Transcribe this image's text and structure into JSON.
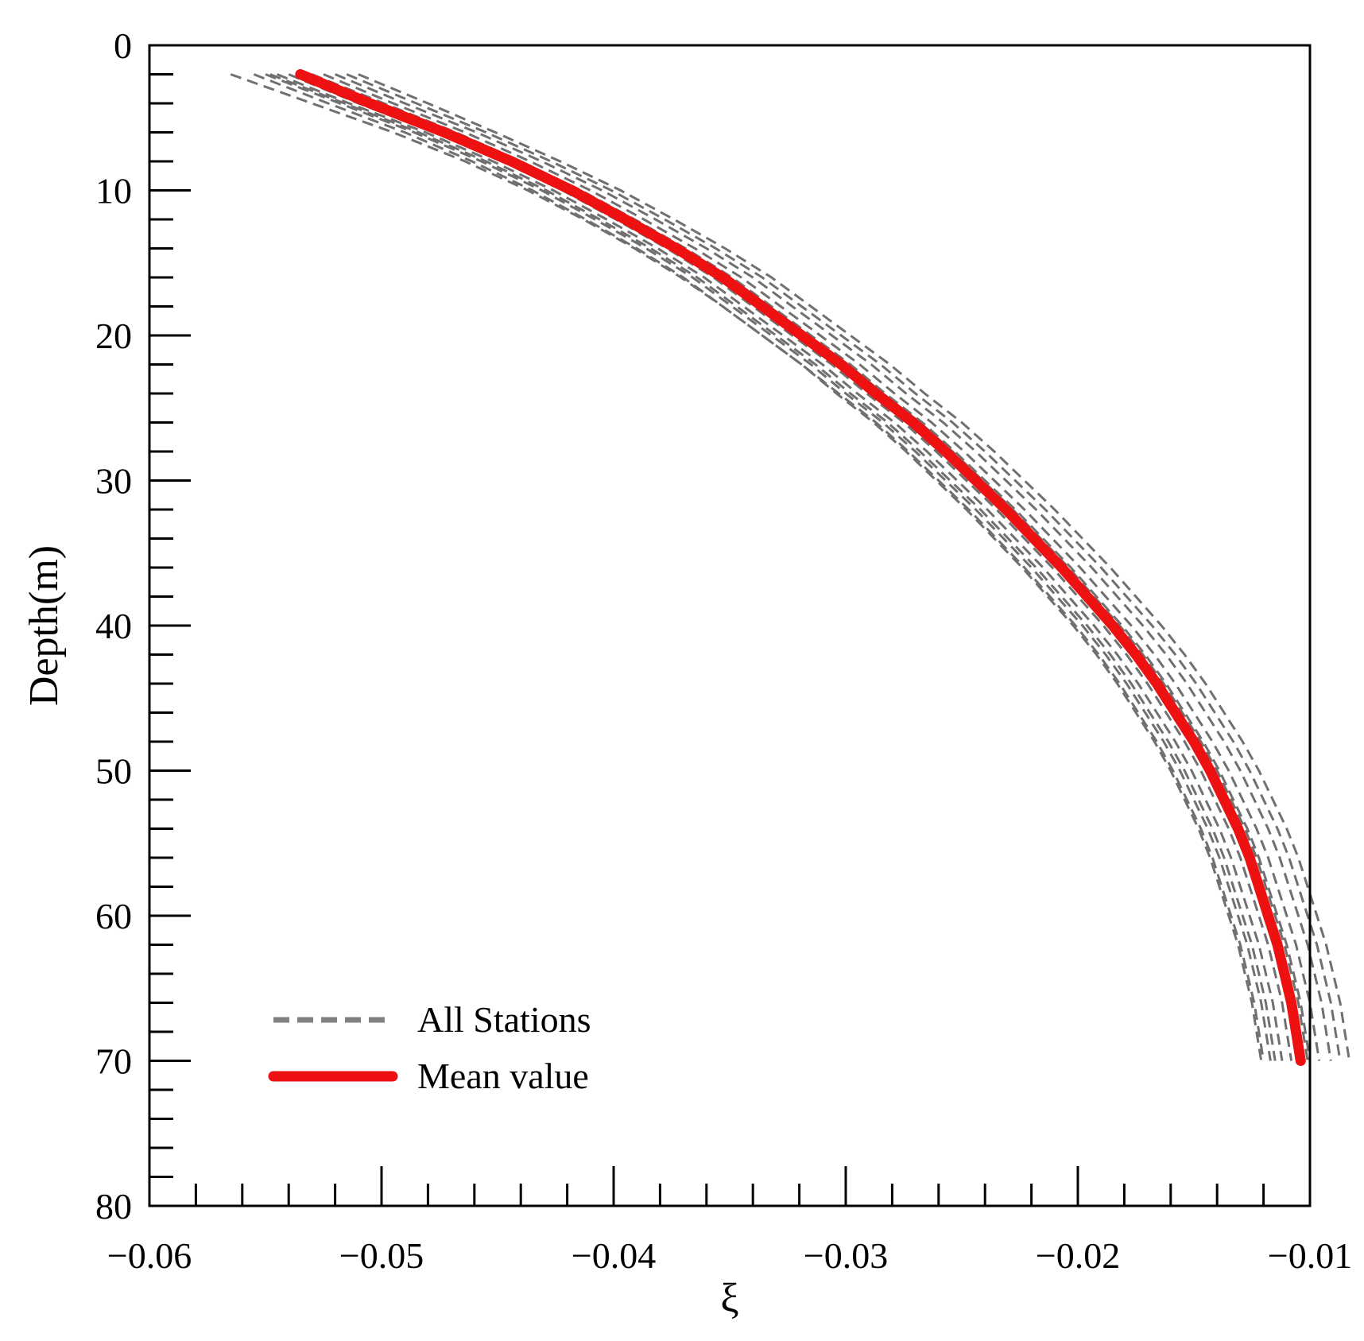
{
  "chart_data": {
    "type": "line",
    "title": "",
    "xlabel": "ξ",
    "ylabel": "Depth(m)",
    "xlim": [
      -0.06,
      -0.01
    ],
    "ylim": [
      0,
      80
    ],
    "y_inverted": true,
    "x_ticks": [
      -0.06,
      -0.05,
      -0.04,
      -0.03,
      -0.02,
      -0.01
    ],
    "x_tick_labels": [
      "−0.06",
      "−0.05",
      "−0.04",
      "−0.03",
      "−0.02",
      "−0.01"
    ],
    "y_ticks": [
      0,
      10,
      20,
      30,
      40,
      50,
      60,
      70,
      80
    ],
    "y_tick_labels": [
      "0",
      "10",
      "20",
      "30",
      "40",
      "50",
      "60",
      "70",
      "80"
    ],
    "x_minor_step": 0.002,
    "y_minor_step": 2,
    "grid": false,
    "legend": {
      "position": "bottom-left",
      "entries": [
        {
          "label": "All Stations",
          "style": "dashed",
          "color": "#808080"
        },
        {
          "label": "Mean value",
          "style": "solid",
          "color": "#ee1111"
        }
      ]
    },
    "depths": [
      2,
      4,
      6,
      8,
      10,
      12,
      14,
      16,
      18,
      20,
      22,
      24,
      26,
      28,
      30,
      32,
      34,
      36,
      38,
      40,
      42,
      44,
      46,
      48,
      50,
      52,
      54,
      56,
      58,
      60,
      62,
      64,
      66,
      68,
      70
    ],
    "series": [
      {
        "name": "Mean value",
        "color": "#ee1111",
        "values": [
          -0.0535,
          -0.0505,
          -0.0473,
          -0.0444,
          -0.0418,
          -0.0395,
          -0.0373,
          -0.0353,
          -0.0336,
          -0.0319,
          -0.0302,
          -0.0287,
          -0.0271,
          -0.0257,
          -0.0244,
          -0.0231,
          -0.0219,
          -0.0207,
          -0.0196,
          -0.0185,
          -0.0175,
          -0.0166,
          -0.0158,
          -0.015,
          -0.0143,
          -0.0137,
          -0.0131,
          -0.0126,
          -0.0122,
          -0.0118,
          -0.0114,
          -0.0111,
          -0.0108,
          -0.0106,
          -0.0104
        ]
      },
      {
        "name": "All Stations",
        "values": [
          -0.052,
          -0.049,
          -0.0459,
          -0.0431,
          -0.0405,
          -0.0382,
          -0.036,
          -0.034,
          -0.0323,
          -0.0306,
          -0.0289,
          -0.0274,
          -0.0258,
          -0.0244,
          -0.0231,
          -0.0218,
          -0.0206,
          -0.0194,
          -0.0183,
          -0.0172,
          -0.0162,
          -0.0153,
          -0.0145,
          -0.0137,
          -0.013,
          -0.0124,
          -0.0118,
          -0.0113,
          -0.0109,
          -0.0105,
          -0.0101,
          -0.0098,
          -0.0095,
          -0.0093,
          -0.0091
        ]
      },
      {
        "name": "All Stations",
        "values": [
          -0.0525,
          -0.0495,
          -0.0464,
          -0.0436,
          -0.041,
          -0.0387,
          -0.0365,
          -0.0345,
          -0.0328,
          -0.0311,
          -0.0294,
          -0.0279,
          -0.0263,
          -0.0249,
          -0.0236,
          -0.0223,
          -0.0211,
          -0.0199,
          -0.0188,
          -0.0177,
          -0.0167,
          -0.0158,
          -0.015,
          -0.0142,
          -0.0135,
          -0.0129,
          -0.0123,
          -0.0118,
          -0.0114,
          -0.011,
          -0.0106,
          -0.0103,
          -0.01,
          -0.0098,
          -0.0096
        ]
      },
      {
        "name": "All Stations",
        "values": [
          -0.053,
          -0.0499,
          -0.0468,
          -0.044,
          -0.0414,
          -0.0391,
          -0.0369,
          -0.0349,
          -0.0332,
          -0.0315,
          -0.0298,
          -0.0283,
          -0.0267,
          -0.0253,
          -0.024,
          -0.0227,
          -0.0215,
          -0.0203,
          -0.0192,
          -0.0181,
          -0.0171,
          -0.0162,
          -0.0154,
          -0.0146,
          -0.0139,
          -0.0133,
          -0.0127,
          -0.0122,
          -0.0118,
          -0.0114,
          -0.011,
          -0.0107,
          -0.0104,
          -0.0102,
          -0.01
        ]
      },
      {
        "name": "All Stations",
        "values": [
          -0.054,
          -0.051,
          -0.0477,
          -0.0448,
          -0.0422,
          -0.0399,
          -0.0377,
          -0.0357,
          -0.034,
          -0.0323,
          -0.0306,
          -0.0291,
          -0.0275,
          -0.0261,
          -0.0248,
          -0.0235,
          -0.0223,
          -0.0211,
          -0.02,
          -0.0189,
          -0.0179,
          -0.017,
          -0.0162,
          -0.0154,
          -0.0147,
          -0.0141,
          -0.0135,
          -0.013,
          -0.0126,
          -0.0122,
          -0.0118,
          -0.0115,
          -0.0112,
          -0.011,
          -0.0108
        ]
      },
      {
        "name": "All Stations",
        "values": [
          -0.0545,
          -0.0514,
          -0.0481,
          -0.0452,
          -0.0426,
          -0.0403,
          -0.0381,
          -0.0361,
          -0.0344,
          -0.0327,
          -0.031,
          -0.0295,
          -0.0279,
          -0.0265,
          -0.0252,
          -0.0239,
          -0.0227,
          -0.0215,
          -0.0204,
          -0.0193,
          -0.0183,
          -0.0174,
          -0.0166,
          -0.0158,
          -0.0151,
          -0.0145,
          -0.0139,
          -0.0134,
          -0.013,
          -0.0126,
          -0.0122,
          -0.0119,
          -0.0116,
          -0.0114,
          -0.0112
        ]
      },
      {
        "name": "All Stations",
        "values": [
          -0.055,
          -0.0518,
          -0.0486,
          -0.0457,
          -0.0431,
          -0.0408,
          -0.0386,
          -0.0366,
          -0.0349,
          -0.0332,
          -0.0315,
          -0.03,
          -0.0284,
          -0.027,
          -0.0257,
          -0.0244,
          -0.0232,
          -0.022,
          -0.0209,
          -0.0198,
          -0.0188,
          -0.0179,
          -0.0171,
          -0.0163,
          -0.0156,
          -0.015,
          -0.0144,
          -0.0139,
          -0.0135,
          -0.0131,
          -0.0127,
          -0.0124,
          -0.0121,
          -0.0119,
          -0.0117
        ]
      },
      {
        "name": "All Stations",
        "values": [
          -0.0515,
          -0.0485,
          -0.0455,
          -0.0427,
          -0.0401,
          -0.0378,
          -0.0356,
          -0.0336,
          -0.0319,
          -0.0302,
          -0.0285,
          -0.027,
          -0.0254,
          -0.024,
          -0.0227,
          -0.0214,
          -0.0202,
          -0.019,
          -0.0179,
          -0.0168,
          -0.0158,
          -0.0149,
          -0.0141,
          -0.0133,
          -0.0126,
          -0.012,
          -0.0114,
          -0.0109,
          -0.0105,
          -0.0101,
          -0.0097,
          -0.0094,
          -0.0091,
          -0.0089,
          -0.0087
        ]
      },
      {
        "name": "All Stations",
        "values": [
          -0.0555,
          -0.0523,
          -0.049,
          -0.0461,
          -0.0435,
          -0.0412,
          -0.039,
          -0.037,
          -0.0353,
          -0.0336,
          -0.0319,
          -0.0304,
          -0.0288,
          -0.0274,
          -0.0261,
          -0.0248,
          -0.0236,
          -0.0224,
          -0.0213,
          -0.0202,
          -0.0192,
          -0.0183,
          -0.0175,
          -0.0167,
          -0.016,
          -0.0154,
          -0.0148,
          -0.0143,
          -0.0139,
          -0.0135,
          -0.0131,
          -0.0128,
          -0.0125,
          -0.0123,
          -0.0121
        ]
      },
      {
        "name": "All Stations",
        "values": [
          -0.0565,
          -0.053,
          -0.0495,
          -0.0464,
          -0.0437,
          -0.0413,
          -0.0391,
          -0.0371,
          -0.0353,
          -0.0336,
          -0.0319,
          -0.0303,
          -0.0287,
          -0.0273,
          -0.026,
          -0.0247,
          -0.0235,
          -0.0223,
          -0.0212,
          -0.0201,
          -0.0191,
          -0.0182,
          -0.0174,
          -0.0166,
          -0.0159,
          -0.0153,
          -0.0147,
          -0.0142,
          -0.0138,
          -0.0134,
          -0.013,
          -0.0127,
          -0.0124,
          -0.0122,
          -0.012
        ]
      },
      {
        "name": "All Stations",
        "values": [
          -0.051,
          -0.048,
          -0.0451,
          -0.0423,
          -0.0397,
          -0.0374,
          -0.0352,
          -0.0332,
          -0.0315,
          -0.0298,
          -0.0281,
          -0.0266,
          -0.025,
          -0.0236,
          -0.0223,
          -0.021,
          -0.0198,
          -0.0186,
          -0.0175,
          -0.0164,
          -0.0154,
          -0.0145,
          -0.0137,
          -0.0129,
          -0.0122,
          -0.0116,
          -0.011,
          -0.0105,
          -0.0101,
          -0.0097,
          -0.0093,
          -0.009,
          -0.0087,
          -0.0085,
          -0.0083
        ]
      },
      {
        "name": "All Stations",
        "values": [
          -0.0535,
          -0.0502,
          -0.047,
          -0.0441,
          -0.0415,
          -0.0392,
          -0.037,
          -0.035,
          -0.0333,
          -0.0316,
          -0.0299,
          -0.0284,
          -0.0268,
          -0.0254,
          -0.0241,
          -0.0228,
          -0.0216,
          -0.0204,
          -0.0193,
          -0.0182,
          -0.0172,
          -0.0163,
          -0.0155,
          -0.0147,
          -0.014,
          -0.0134,
          -0.0128,
          -0.0123,
          -0.0119,
          -0.0115,
          -0.0111,
          -0.0108,
          -0.0105,
          -0.0103,
          -0.0101
        ]
      },
      {
        "name": "All Stations",
        "values": [
          -0.0548,
          -0.0516,
          -0.0484,
          -0.0455,
          -0.0429,
          -0.0406,
          -0.0384,
          -0.0364,
          -0.0347,
          -0.033,
          -0.0313,
          -0.0298,
          -0.0282,
          -0.0268,
          -0.0255,
          -0.0242,
          -0.023,
          -0.0218,
          -0.0207,
          -0.0196,
          -0.0186,
          -0.0177,
          -0.0169,
          -0.0161,
          -0.0154,
          -0.0148,
          -0.0142,
          -0.0137,
          -0.0133,
          -0.0129,
          -0.0125,
          -0.0122,
          -0.0119,
          -0.0117,
          -0.0115
        ]
      }
    ]
  }
}
